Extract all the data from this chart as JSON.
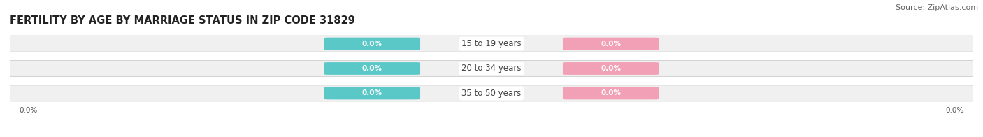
{
  "title": "FERTILITY BY AGE BY MARRIAGE STATUS IN ZIP CODE 31829",
  "source": "Source: ZipAtlas.com",
  "categories": [
    "15 to 19 years",
    "20 to 34 years",
    "35 to 50 years"
  ],
  "married_values": [
    0.0,
    0.0,
    0.0
  ],
  "unmarried_values": [
    0.0,
    0.0,
    0.0
  ],
  "married_color": "#5BC8C8",
  "unmarried_color": "#F2A0B5",
  "bar_bg_color": "#F0F0F0",
  "title_fontsize": 10.5,
  "source_fontsize": 8,
  "label_fontsize": 7.5,
  "cat_fontsize": 8.5,
  "legend_fontsize": 8.5,
  "background_color": "#FFFFFF",
  "bar_edge_color": "#CCCCCC",
  "axis_label_color": "#555555",
  "title_color": "#222222",
  "cat_label_color": "#444444",
  "value_label_color": "#FFFFFF"
}
